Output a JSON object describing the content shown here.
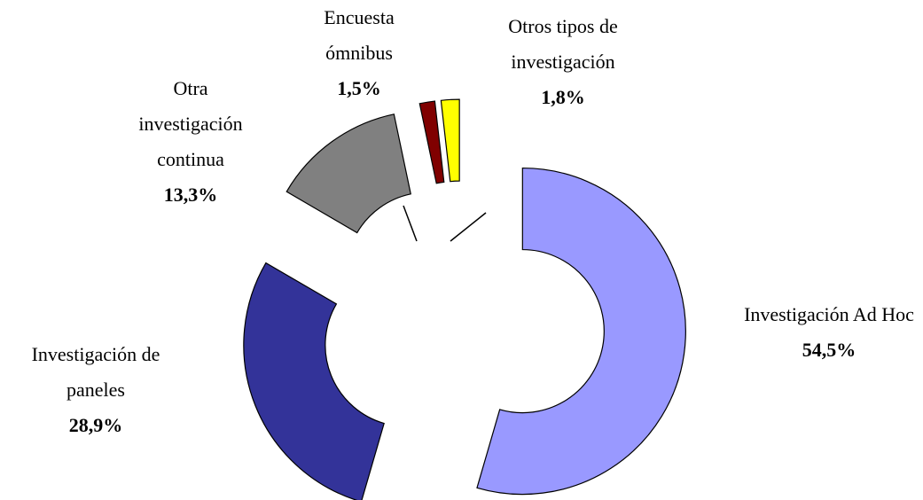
{
  "chart_data": {
    "type": "donut",
    "categories": [
      "Investigación Ad Hoc",
      "Investigación de paneles",
      "Otra investigación continua",
      "Encuesta ómnibus",
      "Otros tipos de investigación"
    ],
    "values": [
      54.5,
      28.9,
      13.3,
      1.5,
      1.8
    ],
    "value_labels": [
      "54,5%",
      "28,9%",
      "13,3%",
      "1,5%",
      "1,8%"
    ],
    "colors": [
      "#9999ff",
      "#333399",
      "#808080",
      "#800000",
      "#ffff00"
    ]
  }
}
